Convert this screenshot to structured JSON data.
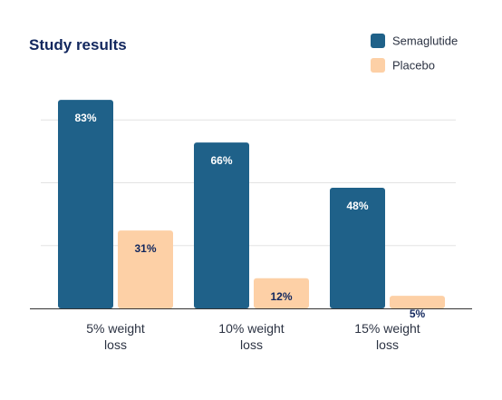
{
  "chart_data": {
    "type": "bar",
    "title": "Study results",
    "categories": [
      [
        "5% weight",
        "loss"
      ],
      [
        "10% weight",
        "loss"
      ],
      [
        "15% weight",
        "loss"
      ]
    ],
    "series": [
      {
        "name": "Semaglutide",
        "values": [
          83,
          66,
          48
        ],
        "labels": [
          "83%",
          "66%",
          "48%"
        ],
        "color": "#1f6189",
        "label_color": "#ffffff"
      },
      {
        "name": "Placebo",
        "values": [
          31,
          12,
          5
        ],
        "labels": [
          "31%",
          "12%",
          "5%"
        ],
        "color": "#fdd0a6",
        "label_color": "#12275e"
      }
    ],
    "ylim": [
      0,
      90
    ],
    "grid": true,
    "legend_position": "top-right",
    "colors": {
      "title": "#12275e",
      "text": "#2b3242",
      "grid": "#e3e3e3",
      "axis": "#333333"
    }
  }
}
